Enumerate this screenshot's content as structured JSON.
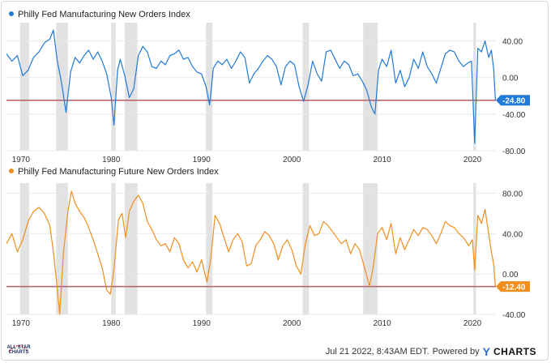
{
  "footer": {
    "timestamp": "Jul 21 2022, 8:43AM EDT.",
    "powered_by": "Powered by",
    "brand_y": "Y",
    "brand_rest": "CHARTS"
  },
  "logo": {
    "line1": "ALL STAR",
    "line2": "CHARTS"
  },
  "colors": {
    "blue": "#1f7ad8",
    "orange": "#f28e1c",
    "reference_line": "#b85c6a",
    "recession": "#e2e2e2",
    "grid": "#e8e8e8"
  },
  "chart_data": [
    {
      "type": "line",
      "title": "Philly Fed Manufacturing New Orders Index",
      "series_color": "#1f7ad8",
      "xlim": [
        1968.4,
        2022.6
      ],
      "ylim": [
        -80,
        60
      ],
      "y_ticks": [
        40,
        0,
        -40,
        -80
      ],
      "y_tick_labels": [
        "40.00",
        "0.00",
        "-40.00",
        "-80.00"
      ],
      "x_ticks": [
        1970,
        1980,
        1990,
        2000,
        2010,
        2020
      ],
      "x_tick_labels": [
        "1970",
        "1980",
        "1990",
        "2000",
        "2010",
        "2020"
      ],
      "last_value": -24.8,
      "last_value_label": "-24.80",
      "recessions": [
        [
          1969.9,
          1970.9
        ],
        [
          1973.9,
          1975.2
        ],
        [
          1980.0,
          1980.5
        ],
        [
          1981.5,
          1982.9
        ],
        [
          1990.5,
          1991.2
        ],
        [
          2001.2,
          2001.9
        ],
        [
          2007.9,
          2009.5
        ],
        [
          2020.1,
          2020.4
        ]
      ],
      "points": [
        [
          1968.4,
          26
        ],
        [
          1969.0,
          18
        ],
        [
          1969.6,
          24
        ],
        [
          1970.2,
          2
        ],
        [
          1970.8,
          8
        ],
        [
          1971.4,
          22
        ],
        [
          1972.0,
          28
        ],
        [
          1972.6,
          38
        ],
        [
          1973.2,
          42
        ],
        [
          1973.6,
          52
        ],
        [
          1974.0,
          20
        ],
        [
          1974.5,
          -6
        ],
        [
          1975.0,
          -38
        ],
        [
          1975.5,
          6
        ],
        [
          1976.0,
          22
        ],
        [
          1976.5,
          16
        ],
        [
          1977.0,
          24
        ],
        [
          1977.5,
          30
        ],
        [
          1978.0,
          20
        ],
        [
          1978.5,
          28
        ],
        [
          1979.0,
          18
        ],
        [
          1979.5,
          4
        ],
        [
          1980.0,
          -22
        ],
        [
          1980.3,
          -52
        ],
        [
          1980.7,
          8
        ],
        [
          1981.0,
          20
        ],
        [
          1981.5,
          2
        ],
        [
          1982.0,
          -22
        ],
        [
          1982.5,
          -12
        ],
        [
          1983.0,
          24
        ],
        [
          1983.5,
          34
        ],
        [
          1984.0,
          28
        ],
        [
          1984.5,
          12
        ],
        [
          1985.0,
          10
        ],
        [
          1985.5,
          18
        ],
        [
          1986.0,
          14
        ],
        [
          1986.5,
          24
        ],
        [
          1987.0,
          26
        ],
        [
          1987.5,
          30
        ],
        [
          1988.0,
          20
        ],
        [
          1988.5,
          22
        ],
        [
          1989.0,
          12
        ],
        [
          1989.5,
          6
        ],
        [
          1990.0,
          4
        ],
        [
          1990.5,
          -10
        ],
        [
          1990.9,
          -30
        ],
        [
          1991.3,
          10
        ],
        [
          1991.8,
          18
        ],
        [
          1992.3,
          14
        ],
        [
          1992.8,
          20
        ],
        [
          1993.3,
          10
        ],
        [
          1993.8,
          18
        ],
        [
          1994.3,
          28
        ],
        [
          1994.8,
          22
        ],
        [
          1995.3,
          -6
        ],
        [
          1995.8,
          4
        ],
        [
          1996.3,
          10
        ],
        [
          1996.8,
          18
        ],
        [
          1997.3,
          24
        ],
        [
          1997.8,
          20
        ],
        [
          1998.3,
          12
        ],
        [
          1998.8,
          -8
        ],
        [
          1999.3,
          12
        ],
        [
          1999.8,
          18
        ],
        [
          2000.3,
          14
        ],
        [
          2000.8,
          -10
        ],
        [
          2001.3,
          -26
        ],
        [
          2001.8,
          -8
        ],
        [
          2002.3,
          18
        ],
        [
          2002.8,
          4
        ],
        [
          2003.3,
          -4
        ],
        [
          2003.8,
          28
        ],
        [
          2004.3,
          30
        ],
        [
          2004.8,
          20
        ],
        [
          2005.3,
          10
        ],
        [
          2005.8,
          18
        ],
        [
          2006.3,
          14
        ],
        [
          2006.8,
          2
        ],
        [
          2007.3,
          4
        ],
        [
          2007.8,
          -4
        ],
        [
          2008.3,
          -14
        ],
        [
          2008.8,
          -32
        ],
        [
          2009.2,
          -40
        ],
        [
          2009.6,
          8
        ],
        [
          2010.0,
          20
        ],
        [
          2010.5,
          12
        ],
        [
          2011.0,
          30
        ],
        [
          2011.5,
          -6
        ],
        [
          2012.0,
          8
        ],
        [
          2012.5,
          -10
        ],
        [
          2013.0,
          0
        ],
        [
          2013.5,
          20
        ],
        [
          2014.0,
          10
        ],
        [
          2014.5,
          28
        ],
        [
          2015.0,
          12
        ],
        [
          2015.5,
          4
        ],
        [
          2016.0,
          -6
        ],
        [
          2016.5,
          10
        ],
        [
          2017.0,
          26
        ],
        [
          2017.5,
          30
        ],
        [
          2018.0,
          28
        ],
        [
          2018.5,
          18
        ],
        [
          2019.0,
          12
        ],
        [
          2019.5,
          16
        ],
        [
          2019.9,
          18
        ],
        [
          2020.25,
          -72
        ],
        [
          2020.6,
          32
        ],
        [
          2021.0,
          28
        ],
        [
          2021.4,
          40
        ],
        [
          2021.8,
          22
        ],
        [
          2022.1,
          30
        ],
        [
          2022.35,
          10
        ],
        [
          2022.55,
          -24.8
        ]
      ]
    },
    {
      "type": "line",
      "title": "Philly Fed Manufacturing Future New Orders Index",
      "series_color": "#f28e1c",
      "xlim": [
        1968.4,
        2022.6
      ],
      "ylim": [
        -40,
        90
      ],
      "y_ticks": [
        80,
        40,
        0,
        -40
      ],
      "y_tick_labels": [
        "80.00",
        "40.00",
        "0.00",
        "-40.00"
      ],
      "x_ticks": [
        1970,
        1980,
        1990,
        2000,
        2010,
        2020
      ],
      "x_tick_labels": [
        "1970",
        "1980",
        "1990",
        "2000",
        "2010",
        "2020"
      ],
      "last_value": -12.4,
      "last_value_label": "-12.40",
      "recessions": [
        [
          1969.9,
          1970.9
        ],
        [
          1973.9,
          1975.2
        ],
        [
          1980.0,
          1980.5
        ],
        [
          1981.5,
          1982.9
        ],
        [
          1990.5,
          1991.2
        ],
        [
          2001.2,
          2001.9
        ],
        [
          2007.9,
          2009.5
        ],
        [
          2020.1,
          2020.4
        ]
      ],
      "points": [
        [
          1968.4,
          30
        ],
        [
          1969.0,
          40
        ],
        [
          1969.6,
          22
        ],
        [
          1970.2,
          34
        ],
        [
          1970.8,
          52
        ],
        [
          1971.4,
          62
        ],
        [
          1972.0,
          66
        ],
        [
          1972.6,
          60
        ],
        [
          1973.2,
          48
        ],
        [
          1973.6,
          22
        ],
        [
          1974.0,
          -12
        ],
        [
          1974.3,
          -40
        ],
        [
          1974.7,
          20
        ],
        [
          1975.2,
          62
        ],
        [
          1975.6,
          82
        ],
        [
          1976.0,
          70
        ],
        [
          1976.5,
          62
        ],
        [
          1977.0,
          56
        ],
        [
          1977.5,
          46
        ],
        [
          1978.0,
          34
        ],
        [
          1978.5,
          20
        ],
        [
          1979.0,
          6
        ],
        [
          1979.5,
          -16
        ],
        [
          1979.9,
          -20
        ],
        [
          1980.3,
          4
        ],
        [
          1980.8,
          54
        ],
        [
          1981.2,
          60
        ],
        [
          1981.6,
          36
        ],
        [
          1982.0,
          62
        ],
        [
          1982.5,
          72
        ],
        [
          1983.0,
          78
        ],
        [
          1983.5,
          70
        ],
        [
          1984.0,
          52
        ],
        [
          1984.5,
          44
        ],
        [
          1985.0,
          34
        ],
        [
          1985.5,
          28
        ],
        [
          1986.0,
          30
        ],
        [
          1986.5,
          22
        ],
        [
          1987.0,
          36
        ],
        [
          1987.5,
          30
        ],
        [
          1988.0,
          14
        ],
        [
          1988.5,
          6
        ],
        [
          1989.0,
          12
        ],
        [
          1989.5,
          2
        ],
        [
          1990.0,
          14
        ],
        [
          1990.6,
          -8
        ],
        [
          1991.0,
          14
        ],
        [
          1991.5,
          58
        ],
        [
          1992.0,
          50
        ],
        [
          1992.5,
          36
        ],
        [
          1993.0,
          22
        ],
        [
          1993.5,
          34
        ],
        [
          1994.0,
          40
        ],
        [
          1994.5,
          32
        ],
        [
          1995.0,
          8
        ],
        [
          1995.5,
          10
        ],
        [
          1996.0,
          28
        ],
        [
          1996.5,
          34
        ],
        [
          1997.0,
          42
        ],
        [
          1997.5,
          38
        ],
        [
          1998.0,
          30
        ],
        [
          1998.5,
          14
        ],
        [
          1999.0,
          28
        ],
        [
          1999.5,
          34
        ],
        [
          2000.0,
          24
        ],
        [
          2000.5,
          8
        ],
        [
          2001.0,
          0
        ],
        [
          2001.5,
          30
        ],
        [
          2002.0,
          48
        ],
        [
          2002.5,
          38
        ],
        [
          2003.0,
          40
        ],
        [
          2003.5,
          52
        ],
        [
          2004.0,
          48
        ],
        [
          2004.5,
          42
        ],
        [
          2005.0,
          36
        ],
        [
          2005.5,
          30
        ],
        [
          2006.0,
          34
        ],
        [
          2006.5,
          20
        ],
        [
          2007.0,
          30
        ],
        [
          2007.5,
          24
        ],
        [
          2008.0,
          8
        ],
        [
          2008.6,
          -12
        ],
        [
          2009.0,
          6
        ],
        [
          2009.5,
          40
        ],
        [
          2010.0,
          46
        ],
        [
          2010.5,
          34
        ],
        [
          2011.0,
          50
        ],
        [
          2011.5,
          20
        ],
        [
          2012.0,
          36
        ],
        [
          2012.5,
          24
        ],
        [
          2013.0,
          34
        ],
        [
          2013.5,
          44
        ],
        [
          2014.0,
          38
        ],
        [
          2014.5,
          46
        ],
        [
          2015.0,
          44
        ],
        [
          2015.5,
          38
        ],
        [
          2016.0,
          30
        ],
        [
          2016.5,
          40
        ],
        [
          2017.0,
          52
        ],
        [
          2017.5,
          48
        ],
        [
          2018.0,
          46
        ],
        [
          2018.5,
          40
        ],
        [
          2019.0,
          36
        ],
        [
          2019.6,
          28
        ],
        [
          2020.0,
          34
        ],
        [
          2020.25,
          4
        ],
        [
          2020.6,
          58
        ],
        [
          2021.0,
          50
        ],
        [
          2021.4,
          64
        ],
        [
          2021.8,
          40
        ],
        [
          2022.1,
          22
        ],
        [
          2022.35,
          10
        ],
        [
          2022.55,
          -12.4
        ]
      ]
    }
  ]
}
